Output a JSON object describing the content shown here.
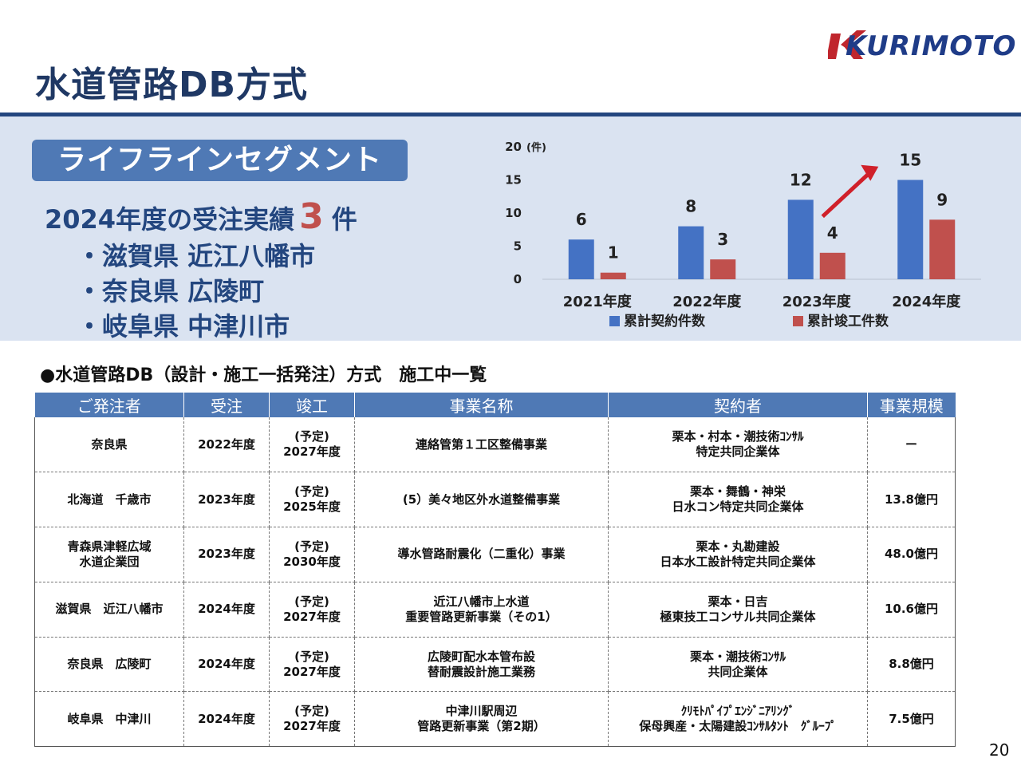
{
  "header": {
    "title": "水道管路DB方式",
    "logo": "KURIMOTO"
  },
  "segment": {
    "label": "ライフラインセグメント",
    "results_prefix": "2024年度の受注実績",
    "results_count": "3",
    "results_suffix": "件",
    "locations": [
      "・滋賀県 近江八幡市",
      "・奈良県 広陵町",
      "・岐阜県 中津川市"
    ]
  },
  "chart_data": {
    "type": "bar",
    "categories": [
      "2021年度",
      "2022年度",
      "2023年度",
      "2024年度"
    ],
    "series": [
      {
        "name": "累計契約件数",
        "values": [
          6,
          8,
          12,
          15
        ],
        "color": "#4472c4"
      },
      {
        "name": "累計竣工件数",
        "values": [
          1,
          3,
          4,
          9
        ],
        "color": "#c0504d"
      }
    ],
    "ylim": [
      0,
      20
    ],
    "yticks": [
      0,
      5,
      10,
      15,
      20
    ],
    "ylabel": "(件)",
    "legend": "bottom",
    "grid": false,
    "annotation": "red arrow pointing up toward 2024年度"
  },
  "table": {
    "heading": "●水道管路DB（設計・施工一括発注）方式　施工中一覧",
    "headers": [
      "ご発注者",
      "受注",
      "竣工",
      "事業名称",
      "契約者",
      "事業規模"
    ],
    "rows": [
      {
        "client": [
          "奈良県"
        ],
        "order": "2022年度",
        "completion": [
          "(予定)",
          "2027年度"
        ],
        "project": [
          "連絡管第１工区整備事業"
        ],
        "contractor": [
          "栗本・村本・潮技術ｺﾝｻﾙ",
          "特定共同企業体"
        ],
        "scale": "ー"
      },
      {
        "client": [
          "北海道　千歳市"
        ],
        "order": "2023年度",
        "completion": [
          "(予定)",
          "2025年度"
        ],
        "project": [
          "(5）美々地区外水道整備事業"
        ],
        "contractor": [
          "栗本・舞鶴・神栄",
          "日水コン特定共同企業体"
        ],
        "scale": "13.8億円"
      },
      {
        "client": [
          "青森県津軽広域",
          "水道企業団"
        ],
        "order": "2023年度",
        "completion": [
          "(予定)",
          "2030年度"
        ],
        "project": [
          "導水管路耐震化（二重化）事業"
        ],
        "contractor": [
          "栗本・丸勘建設",
          "日本水工設計特定共同企業体"
        ],
        "scale": "48.0億円"
      },
      {
        "client": [
          "滋賀県　近江八幡市"
        ],
        "order": "2024年度",
        "completion": [
          "(予定)",
          "2027年度"
        ],
        "project": [
          "近江八幡市上水道",
          "重要管路更新事業（その1）"
        ],
        "contractor": [
          "栗本・日吉",
          "極東技工コンサル共同企業体"
        ],
        "scale": "10.6億円"
      },
      {
        "client": [
          "奈良県　広陵町"
        ],
        "order": "2024年度",
        "completion": [
          "(予定)",
          "2027年度"
        ],
        "project": [
          "広陵町配水本管布設",
          "替耐震設計施工業務"
        ],
        "contractor": [
          "栗本・潮技術ｺﾝｻﾙ",
          "共同企業体"
        ],
        "scale": "8.8億円"
      },
      {
        "client": [
          "岐阜県　中津川"
        ],
        "order": "2024年度",
        "completion": [
          "(予定)",
          "2027年度"
        ],
        "project": [
          "中津川駅周辺",
          "管路更新事業（第2期）"
        ],
        "contractor": [
          "ｸﾘﾓﾄﾊﾟｲﾌﾟｴﾝｼﾞﾆｱﾘﾝｸﾞ",
          "保母興産・太陽建設ｺﾝｻﾙﾀﾝﾄ　ｸﾞﾙｰﾌﾟ"
        ],
        "scale": "7.5億円"
      }
    ]
  },
  "page_number": "20"
}
